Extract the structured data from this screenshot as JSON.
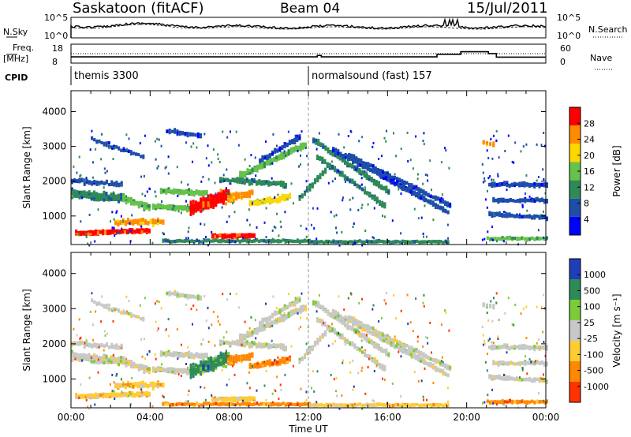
{
  "header": {
    "radar": "Saskatoon (fitACF)",
    "beam": "Beam 04",
    "date": "15/Jul/2011"
  },
  "chart_data": [
    {
      "type": "line",
      "title": "",
      "left_label": "N.Sky",
      "right_label": "N.Search",
      "left_ticks": [
        "10^5",
        "10^0"
      ],
      "right_ticks": [
        "10^5",
        "10^0"
      ]
    },
    {
      "type": "line",
      "left_label_top": "Freq.",
      "left_label_bottom": "[MHz]",
      "right_label": "Nave",
      "left_ticks": [
        "18",
        "8"
      ],
      "right_ticks": [
        "60",
        "0"
      ],
      "freq_steps_hours": [
        [
          0,
          10.2
        ],
        [
          12.4,
          10.2
        ],
        [
          12.45,
          11.2
        ],
        [
          12.65,
          10.2
        ],
        [
          18.5,
          12.0
        ],
        [
          19.7,
          13.8
        ],
        [
          21.1,
          12.5
        ],
        [
          21.5,
          10.0
        ],
        [
          24,
          10.0
        ]
      ],
      "nave_dotted_level": 30
    },
    {
      "type": "table",
      "label": "CPID",
      "segments": [
        {
          "start_hour": 0.0,
          "end_hour": 12.0,
          "text": "themis 3300"
        },
        {
          "start_hour": 12.0,
          "end_hour": 24.0,
          "text": "normalsound (fast) 157"
        }
      ]
    },
    {
      "type": "heatmap",
      "ylabel": "Slant Range [km]",
      "yticks": [
        1000,
        2000,
        3000,
        4000
      ],
      "ylim": [
        180,
        4600
      ],
      "colorbar_label": "Power [dB]",
      "colorbar_ticks": [
        "4",
        "8",
        "12",
        "16",
        "20",
        "24",
        "28"
      ],
      "colorbar_range": [
        0,
        30
      ],
      "colors": [
        "#0000ff",
        "#1d4ea8",
        "#2e8b57",
        "#66c24a",
        "#ffd700",
        "#ff8c00",
        "#ff0000"
      ]
    },
    {
      "type": "heatmap",
      "ylabel": "Slant Range [km]",
      "xlabel": "Time UT",
      "yticks": [
        1000,
        2000,
        3000,
        4000
      ],
      "ylim": [
        180,
        4600
      ],
      "xticks": [
        "00:00",
        "04:00",
        "08:00",
        "12:00",
        "16:00",
        "20:00",
        "00:00"
      ],
      "colorbar_label": "Velocity  [m s⁻¹]",
      "colorbar_ticks": [
        "1000",
        "500",
        "100",
        "25",
        "-25",
        "-100",
        "-500",
        "-1000"
      ],
      "colors": [
        "#1f3fb8",
        "#2e8b57",
        "#7ccc3a",
        "#c8c8c8",
        "#ffcc33",
        "#ff8800",
        "#ff3300"
      ]
    }
  ]
}
